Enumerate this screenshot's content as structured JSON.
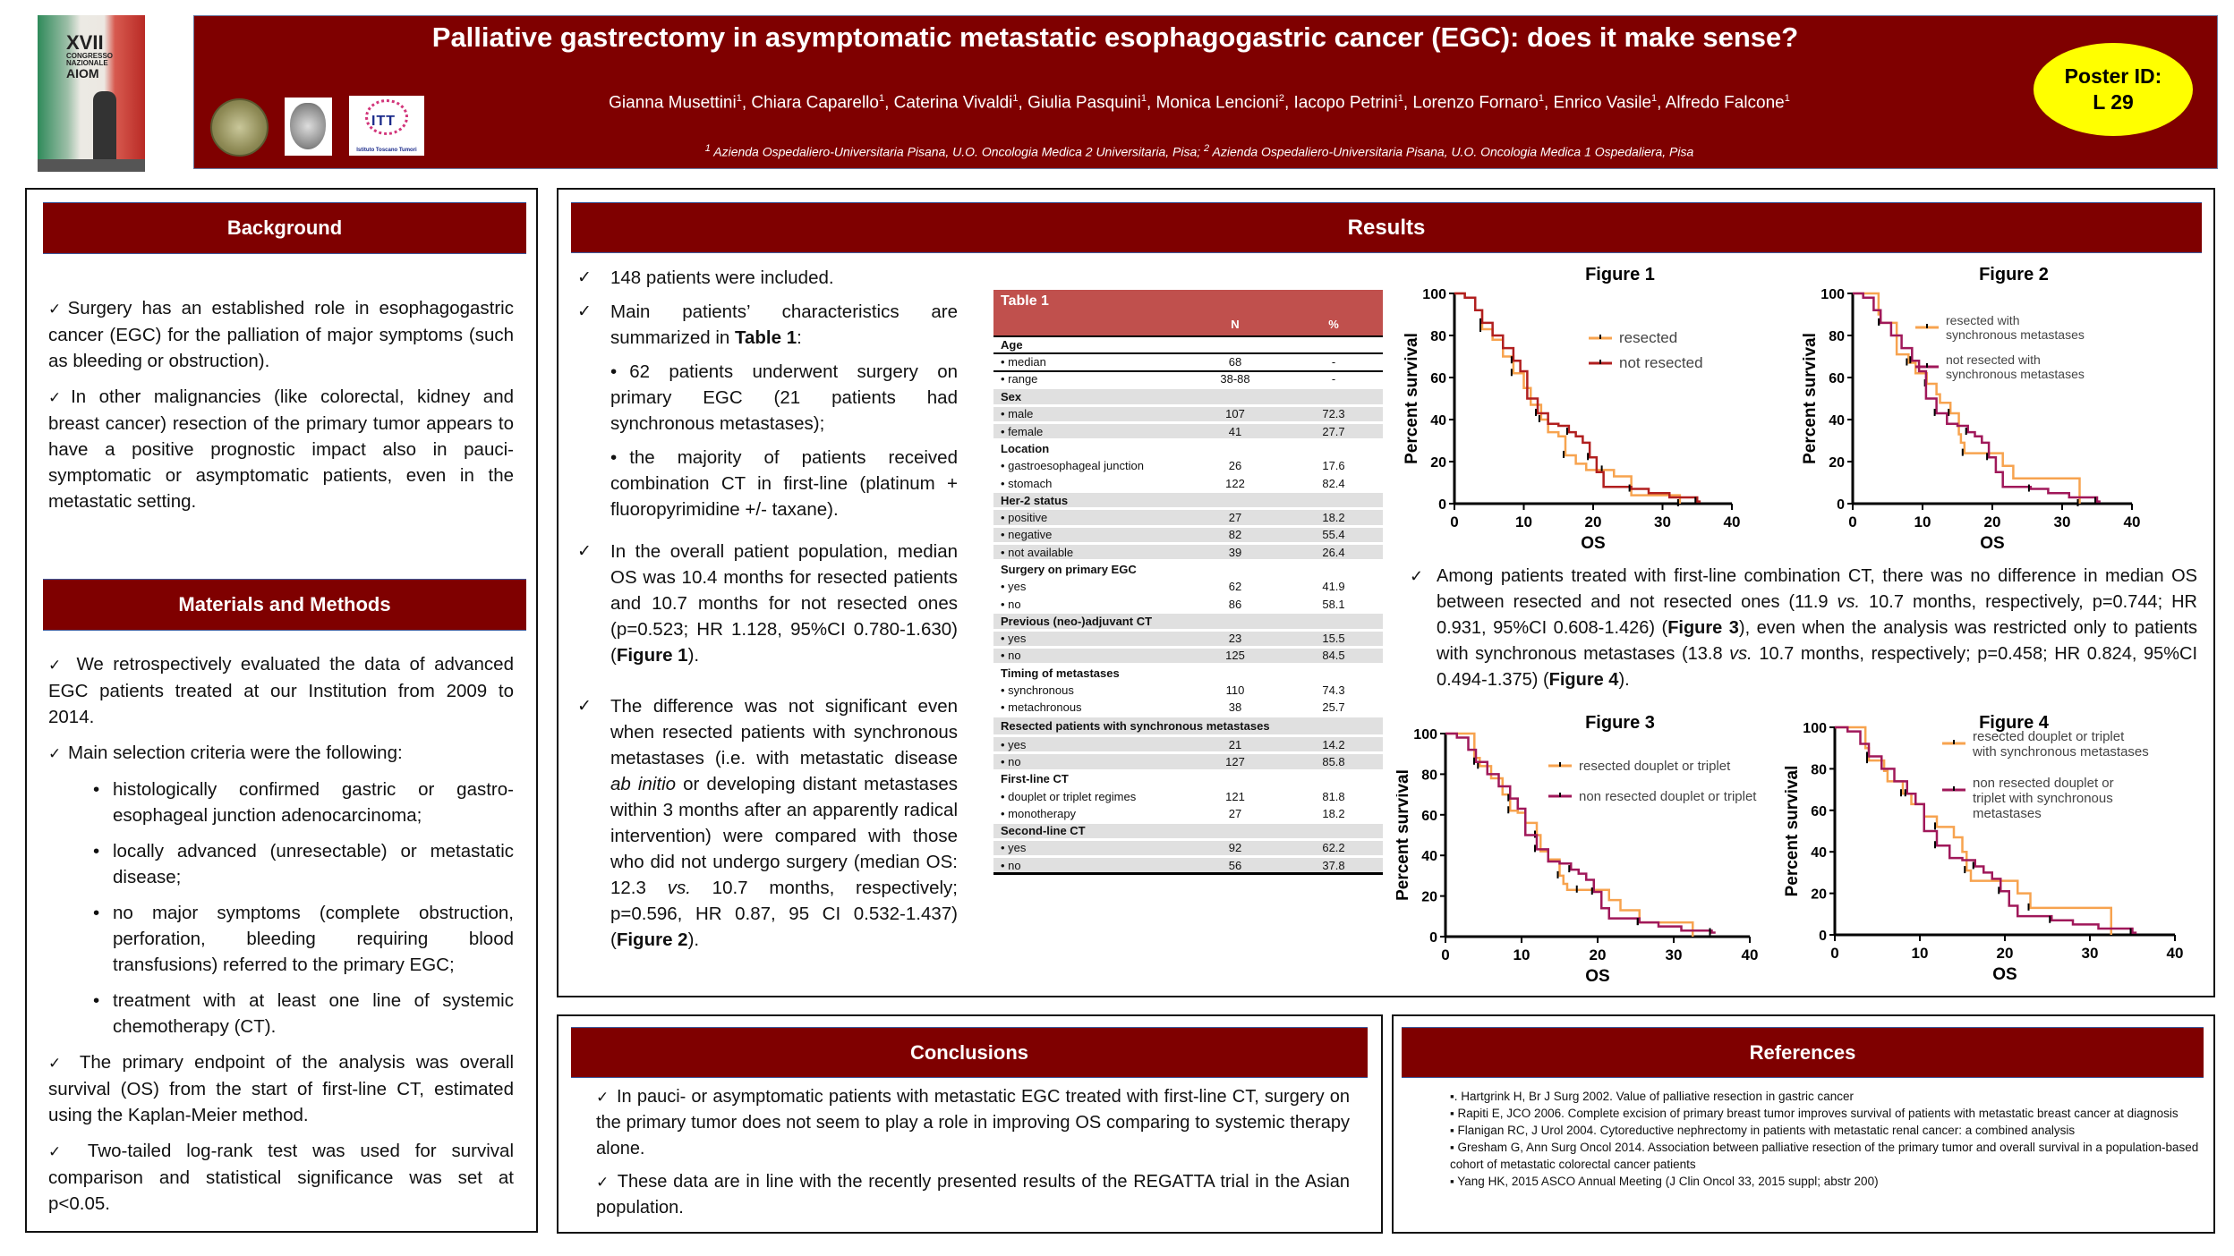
{
  "header": {
    "title": "Palliative gastrectomy in asymptomatic metastatic esophagogastric cancer (EGC): does it make sense?",
    "authors": [
      {
        "name": "Gianna Musettini",
        "aff": "1"
      },
      {
        "name": "Chiara Caparello",
        "aff": "1"
      },
      {
        "name": "Caterina Vivaldi",
        "aff": "1"
      },
      {
        "name": "Giulia Pasquini",
        "aff": "1"
      },
      {
        "name": "Monica Lencioni",
        "aff": "2"
      },
      {
        "name": "Iacopo Petrini",
        "aff": "1"
      },
      {
        "name": "Lorenzo Fornaro",
        "aff": "1"
      },
      {
        "name": "Enrico Vasile",
        "aff": "1"
      },
      {
        "name": "Alfredo Falcone",
        "aff": "1"
      }
    ],
    "affiliations": [
      {
        "num": "1",
        "text": "Azienda Ospedaliero-Universitaria Pisana, U.O. Oncologia Medica 2 Universitaria, Pisa;"
      },
      {
        "num": "2",
        "text": "Azienda Ospedaliero-Universitaria Pisana, U.O. Oncologia Medica 1 Ospedaliera, Pisa"
      }
    ],
    "poster_id_label": "Poster ID:",
    "poster_id": "L 29",
    "logos": {
      "congress_line1": "XVII",
      "congress_line2": "CONGRESSO",
      "congress_line3": "NAZIONALE",
      "congress_line4": "AIOM",
      "itt_abbr": "ITT",
      "itt_name": "Istituto Toscano Tumori"
    }
  },
  "colors": {
    "brand": "#7f0000",
    "table_header": "#c0504d",
    "badge": "#ffff00",
    "curve_orange": "#f7a34f",
    "curve_red": "#b11f1f",
    "curve_purple": "#a0185a"
  },
  "background": {
    "heading": "Background",
    "paragraphs": [
      "Surgery has an established role in esophagogastric cancer (EGC) for the palliation of major symptoms (such as bleeding or obstruction).",
      "In other malignancies (like colorectal, kidney and breast cancer) resection of the primary tumor appears to have a positive prognostic impact also in pauci-symptomatic or asymptomatic patients, even in the metastatic setting."
    ]
  },
  "methods": {
    "heading": "Materials and Methods",
    "intro": "We retrospectively evaluated the data of advanced EGC patients treated at our Institution from 2009 to 2014.",
    "criteria_lead": "Main selection criteria were the following:",
    "criteria": [
      "histologically confirmed gastric or gastro-esophageal junction adenocarcinoma;",
      "locally advanced (unresectable) or metastatic disease;",
      "no major symptoms (complete obstruction, perforation, bleeding requiring blood transfusions) referred to the primary EGC;",
      "treatment with at least one line of systemic chemotherapy (CT)."
    ],
    "endpoint": "The primary endpoint of the analysis was overall survival (OS) from the start of first-line CT, estimated using the Kaplan-Meier method.",
    "stats": "Two-tailed log-rank test was used for survival comparison and statistical significance was set at p<0.05."
  },
  "results": {
    "heading": "Results",
    "item1": "148 patients were included.",
    "item2_pre": "Main patients’ characteristics are summarized in ",
    "item2_bold": "Table 1",
    "item2_post": ":",
    "sub1": "62 patients underwent surgery on primary EGC (21 patients had synchronous metastases);",
    "sub2": "the majority of patients received combination CT in first-line (platinum + fluoropyrimidine +/- taxane).",
    "item3_pre": "In the overall patient population, median OS was 10.4 months for resected patients and 10.7 months for not resected ones (p=0.523; HR 1.128, 95%CI 0.780-1.630) (",
    "item3_bold": "Figure 1",
    "item3_post": ").",
    "item4_a": "The difference was not significant even when resected patients with synchronous metastases (i.e. with metastatic disease ",
    "item4_ital": "ab initio",
    "item4_b": " or developing distant metastases within 3 months after an apparently radical intervention) were compared with those who did not undergo surgery (median OS: 12.3 ",
    "item4_vs": "vs.",
    "item4_c": " 10.7 months, respectively; p=0.596, HR 0.87, 95 CI 0.532-1.437) (",
    "item4_bold": "Figure 2",
    "item4_post": ").",
    "note_a": "Among patients treated with first-line combination CT, there was no difference in median OS between resected and not resected ones (11.9 ",
    "note_vs1": "vs.",
    "note_b": " 10.7 months, respectively, p=0.744; HR 0.931, 95%CI 0.608-1.426) (",
    "note_bold1": "Figure 3",
    "note_c": "), even when the analysis was restricted only to patients with synchronous metastases (13.8 ",
    "note_vs2": "vs.",
    "note_d": " 10.7 months, respectively; p=0.458; HR 0.824, 95%CI 0.494-1.375) (",
    "note_bold2": "Figure 4",
    "note_e": ")."
  },
  "table1": {
    "title": "Table 1",
    "col_n": "N",
    "col_pct": "%",
    "groups": [
      {
        "label": "Age",
        "rows": [
          {
            "label": "• median",
            "n": "68",
            "pct": "-"
          },
          {
            "label": "• range",
            "n": "38-88",
            "pct": "-"
          }
        ]
      },
      {
        "label": "Sex",
        "rows": [
          {
            "label": "• male",
            "n": "107",
            "pct": "72.3"
          },
          {
            "label": "• female",
            "n": "41",
            "pct": "27.7"
          }
        ]
      },
      {
        "label": "Location",
        "rows": [
          {
            "label": "• gastroesophageal junction",
            "n": "26",
            "pct": "17.6"
          },
          {
            "label": "• stomach",
            "n": "122",
            "pct": "82.4"
          }
        ]
      },
      {
        "label": "Her-2 status",
        "rows": [
          {
            "label": "• positive",
            "n": "27",
            "pct": "18.2"
          },
          {
            "label": "• negative",
            "n": "82",
            "pct": "55.4"
          },
          {
            "label": "• not available",
            "n": "39",
            "pct": "26.4"
          }
        ]
      },
      {
        "label": "Surgery on primary EGC",
        "rows": [
          {
            "label": "• yes",
            "n": "62",
            "pct": "41.9"
          },
          {
            "label": "• no",
            "n": "86",
            "pct": "58.1"
          }
        ]
      },
      {
        "label": "Previous (neo-)adjuvant CT",
        "rows": [
          {
            "label": "• yes",
            "n": "23",
            "pct": "15.5"
          },
          {
            "label": "• no",
            "n": "125",
            "pct": "84.5"
          }
        ]
      },
      {
        "label": "Timing of metastases",
        "rows": [
          {
            "label": "• synchronous",
            "n": "110",
            "pct": "74.3"
          },
          {
            "label": "• metachronous",
            "n": "38",
            "pct": "25.7"
          }
        ]
      },
      {
        "label": "Resected patients with synchronous metastases",
        "rows": [
          {
            "label": "• yes",
            "n": "21",
            "pct": "14.2"
          },
          {
            "label": "• no",
            "n": "127",
            "pct": "85.8"
          }
        ]
      },
      {
        "label": "First-line CT",
        "rows": [
          {
            "label": "• douplet or triplet regimes",
            "n": "121",
            "pct": "81.8"
          },
          {
            "label": "• monotherapy",
            "n": "27",
            "pct": "18.2"
          }
        ]
      },
      {
        "label": "Second-line CT",
        "rows": [
          {
            "label": "• yes",
            "n": "92",
            "pct": "62.2"
          },
          {
            "label": "• no",
            "n": "56",
            "pct": "37.8"
          }
        ]
      }
    ]
  },
  "chart_data": [
    {
      "type": "line",
      "title": "Figure 1",
      "xlabel": "OS",
      "ylabel": "Percent survival",
      "xlim": [
        0,
        40
      ],
      "ylim": [
        0,
        100
      ],
      "xticks": [
        0,
        10,
        20,
        30,
        40
      ],
      "yticks": [
        0,
        20,
        40,
        60,
        80,
        100
      ],
      "legend": "top-right",
      "series": [
        {
          "name": "resected",
          "color": "#f7a34f",
          "x": [
            0,
            1.5,
            3,
            4,
            5.5,
            7,
            8.5,
            10,
            11,
            12.5,
            13.5,
            15,
            16,
            17.5,
            19,
            21.5,
            23,
            25.5,
            32.5
          ],
          "y": [
            100,
            98,
            92,
            83,
            78,
            70,
            62,
            55,
            47,
            40,
            34,
            32,
            23,
            19,
            16,
            16,
            13,
            4,
            0
          ]
        },
        {
          "name": "not resected",
          "color": "#b11f1f",
          "x": [
            0,
            1.5,
            3,
            4,
            5.5,
            7,
            8.5,
            9.5,
            10.5,
            12,
            13.5,
            15,
            16.5,
            17.5,
            18.5,
            19.5,
            20.5,
            21.5,
            25.5,
            28,
            31,
            35,
            35.5
          ],
          "y": [
            100,
            98,
            92,
            86,
            80,
            74,
            68,
            63,
            50,
            43,
            38,
            37,
            34,
            32,
            29,
            22,
            15,
            8,
            7,
            5,
            3,
            1,
            1
          ]
        }
      ]
    },
    {
      "type": "line",
      "title": "Figure 2",
      "xlabel": "OS",
      "ylabel": "Percent survival",
      "xlim": [
        0,
        40
      ],
      "ylim": [
        0,
        100
      ],
      "xticks": [
        0,
        10,
        20,
        30,
        40
      ],
      "yticks": [
        0,
        20,
        40,
        60,
        80,
        100
      ],
      "legend": "top-right",
      "series": [
        {
          "name": "resected with synchronous metastases",
          "color": "#f7a34f",
          "x": [
            0,
            3.3,
            3.7,
            4,
            6,
            6.3,
            8,
            9,
            10,
            10.6,
            12,
            12.5,
            14,
            15.2,
            15.5,
            16,
            21.5,
            23,
            32.5
          ],
          "y": [
            100,
            100,
            90,
            86,
            86,
            71,
            67,
            62,
            62,
            57,
            52,
            48,
            43,
            33,
            29,
            24,
            18,
            12,
            0
          ]
        },
        {
          "name": "not resected with synchronous metastases",
          "color": "#a0185a",
          "x": [
            0,
            1.5,
            3,
            4,
            5.5,
            7,
            8.5,
            9.5,
            10.5,
            12,
            13.5,
            15,
            16.5,
            17.5,
            18.5,
            19.5,
            20.5,
            21.5,
            25.5,
            28,
            31,
            35,
            35.5
          ],
          "y": [
            100,
            98,
            92,
            86,
            80,
            74,
            68,
            63,
            50,
            43,
            38,
            37,
            34,
            32,
            29,
            22,
            15,
            8,
            7,
            5,
            3,
            1,
            1
          ]
        }
      ]
    },
    {
      "type": "line",
      "title": "Figure 3",
      "xlabel": "OS",
      "ylabel": "Percent survival",
      "xlim": [
        0,
        40
      ],
      "ylim": [
        0,
        100
      ],
      "xticks": [
        0,
        10,
        20,
        30,
        40
      ],
      "yticks": [
        0,
        20,
        40,
        60,
        80,
        100
      ],
      "legend": "top-right",
      "series": [
        {
          "name": "resected douplet or triplet",
          "color": "#f7a34f",
          "x": [
            0,
            3.3,
            3.8,
            4.5,
            6,
            7.5,
            8.5,
            9.5,
            10.5,
            12,
            12.5,
            13.5,
            15,
            15.5,
            16,
            17.5,
            21.5,
            23,
            25.5,
            32.5
          ],
          "y": [
            100,
            100,
            88,
            84,
            78,
            70,
            62,
            61,
            56,
            50,
            42,
            38,
            30,
            26,
            23,
            23,
            18,
            13,
            7,
            0
          ]
        },
        {
          "name": "non resected douplet or triplet",
          "color": "#a0185a",
          "x": [
            0,
            1.5,
            3,
            4,
            5.5,
            7,
            8.5,
            9.5,
            10.5,
            12,
            13.5,
            15,
            16.5,
            17.5,
            18.5,
            19.5,
            20.5,
            21.5,
            25.5,
            28,
            31,
            35,
            35.5
          ],
          "y": [
            100,
            98,
            92,
            86,
            80,
            74,
            68,
            63,
            50,
            43,
            37,
            36,
            33,
            31,
            28,
            22,
            14,
            9,
            7,
            5,
            3,
            2,
            2
          ]
        }
      ]
    },
    {
      "type": "line",
      "title": "Figure 4",
      "xlabel": "OS",
      "ylabel": "Percent survival",
      "xlim": [
        0,
        40
      ],
      "ylim": [
        0,
        100
      ],
      "xticks": [
        0,
        10,
        20,
        30,
        40
      ],
      "yticks": [
        0,
        20,
        40,
        60,
        80,
        100
      ],
      "legend": "top-right",
      "series": [
        {
          "name": "resected douplet or triplet with synchronous metastases",
          "color": "#f7a34f",
          "x": [
            0,
            3.2,
            3.6,
            4,
            5.8,
            6.2,
            8,
            9,
            10.5,
            12,
            14,
            15,
            15.5,
            16,
            21.5,
            23,
            32.5
          ],
          "y": [
            100,
            100,
            90,
            84,
            79,
            74,
            68,
            63,
            57,
            52,
            47,
            40,
            31,
            26,
            20,
            13,
            0
          ]
        },
        {
          "name": "non resected douplet or triplet with synchronous metastases",
          "color": "#a0185a",
          "x": [
            0,
            1.5,
            3,
            4,
            5.5,
            7,
            8.5,
            9.5,
            10.5,
            12,
            13.5,
            15,
            16.5,
            17.5,
            18.5,
            19.5,
            20.5,
            21.5,
            25.5,
            28,
            31,
            35,
            35.5
          ],
          "y": [
            100,
            98,
            92,
            86,
            80,
            74,
            68,
            63,
            50,
            43,
            37,
            36,
            33,
            30,
            27,
            21,
            14,
            9,
            7,
            5,
            3,
            1,
            1
          ]
        }
      ]
    }
  ],
  "conclusions": {
    "heading": "Conclusions",
    "items": [
      "In pauci- or asymptomatic patients with metastatic EGC treated with first-line CT, surgery on the primary tumor does not seem to play a role in improving OS comparing to systemic therapy alone.",
      "These data are in line with the recently presented results of the REGATTA trial in the Asian population."
    ]
  },
  "references": {
    "heading": "References",
    "items": [
      "▪. Hartgrink H, Br J Surg 2002. Value of palliative resection in gastric cancer",
      "▪ Rapiti E, JCO 2006. Complete excision of primary breast tumor improves survival of patients with metastatic   breast cancer at diagnosis",
      "▪ Flanigan RC, J Urol 2004. Cytoreductive nephrectomy in patients with metastatic renal cancer: a combined analysis",
      "▪ Gresham G, Ann Surg Oncol 2014. Association between palliative resection of the primary tumor and overall survival in a population-based cohort of metastatic colorectal cancer patients",
      "▪ Yang HK, 2015 ASCO Annual Meeting (J Clin Oncol 33, 2015 suppl; abstr 200)"
    ]
  },
  "icons": {
    "check": "✓",
    "bullet": "•"
  }
}
